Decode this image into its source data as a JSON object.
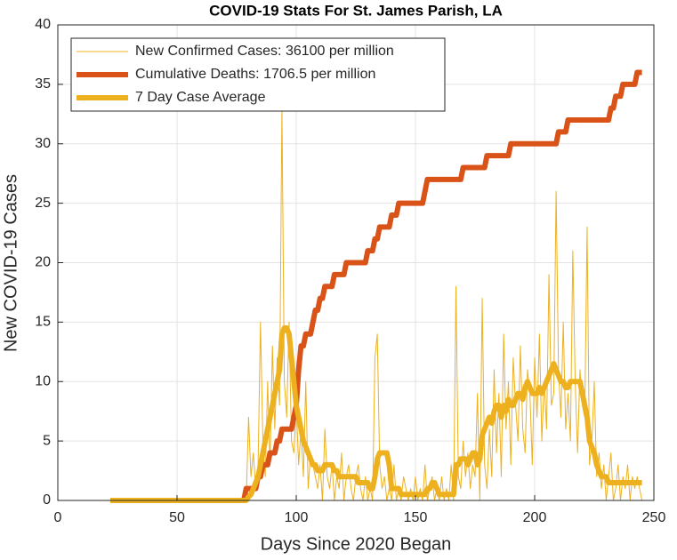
{
  "chart_data": {
    "type": "line",
    "title": "COVID-19 Stats For St. James Parish, LA",
    "xlabel": "Days Since 2020 Began",
    "ylabel": "New COVID-19 Cases",
    "xlim": [
      0,
      250
    ],
    "xticks": [
      0,
      50,
      100,
      150,
      200,
      250
    ],
    "ylim": [
      0,
      40
    ],
    "yticks": [
      0,
      5,
      10,
      15,
      20,
      25,
      30,
      35,
      40
    ],
    "grid": true,
    "legend": "northwest",
    "x": [
      22,
      23,
      24,
      25,
      26,
      27,
      28,
      29,
      30,
      31,
      32,
      33,
      34,
      35,
      36,
      37,
      38,
      39,
      40,
      41,
      42,
      43,
      44,
      45,
      46,
      47,
      48,
      49,
      50,
      51,
      52,
      53,
      54,
      55,
      56,
      57,
      58,
      59,
      60,
      61,
      62,
      63,
      64,
      65,
      66,
      67,
      68,
      69,
      70,
      71,
      72,
      73,
      74,
      75,
      76,
      77,
      78,
      79,
      80,
      81,
      82,
      83,
      84,
      85,
      86,
      87,
      88,
      89,
      90,
      91,
      92,
      93,
      94,
      95,
      96,
      97,
      98,
      99,
      100,
      101,
      102,
      103,
      104,
      105,
      106,
      107,
      108,
      109,
      110,
      111,
      112,
      113,
      114,
      115,
      116,
      117,
      118,
      119,
      120,
      121,
      122,
      123,
      124,
      125,
      126,
      127,
      128,
      129,
      130,
      131,
      132,
      133,
      134,
      135,
      136,
      137,
      138,
      139,
      140,
      141,
      142,
      143,
      144,
      145,
      146,
      147,
      148,
      149,
      150,
      151,
      152,
      153,
      154,
      155,
      156,
      157,
      158,
      159,
      160,
      161,
      162,
      163,
      164,
      165,
      166,
      167,
      168,
      169,
      170,
      171,
      172,
      173,
      174,
      175,
      176,
      177,
      178,
      179,
      180,
      181,
      182,
      183,
      184,
      185,
      186,
      187,
      188,
      189,
      190,
      191,
      192,
      193,
      194,
      195,
      196,
      197,
      198,
      199,
      200,
      201,
      202,
      203,
      204,
      205,
      206,
      207,
      208,
      209,
      210,
      211,
      212,
      213,
      214,
      215,
      216,
      217,
      218,
      219,
      220,
      221,
      222,
      223,
      224,
      225,
      226,
      227,
      228,
      229,
      230,
      231,
      232,
      233,
      234,
      235,
      236,
      237,
      238,
      239,
      240,
      241,
      242,
      243,
      244,
      245
    ],
    "series": [
      {
        "name": "New Confirmed Cases: 36100 per million",
        "color": "#EDB120",
        "values": [
          0,
          0,
          0,
          0,
          0,
          0,
          0,
          0,
          0,
          0,
          0,
          0,
          0,
          0,
          0,
          0,
          0,
          0,
          0,
          0,
          0,
          0,
          0,
          0,
          0,
          0,
          0,
          0,
          0,
          0,
          0,
          0,
          0,
          0,
          0,
          0,
          0,
          0,
          0,
          0,
          0,
          0,
          0,
          0,
          0,
          0,
          0,
          0,
          0,
          0,
          0,
          0,
          0,
          0,
          0,
          0,
          0,
          0,
          7,
          2,
          4,
          1,
          3,
          15,
          5,
          2,
          10,
          3,
          13,
          6,
          12,
          8,
          33,
          10,
          7,
          15,
          5,
          4,
          8,
          3,
          6,
          2,
          10,
          1,
          4,
          3,
          2,
          1,
          3,
          0,
          6,
          2,
          1,
          3,
          0,
          2,
          1,
          4,
          0,
          2,
          3,
          1,
          0,
          2,
          3,
          1,
          0,
          2,
          0,
          1,
          0,
          12,
          14,
          3,
          1,
          2,
          0,
          1,
          0,
          3,
          0,
          1,
          0,
          2,
          1,
          0,
          1,
          0,
          2,
          0,
          1,
          0,
          3,
          0,
          1,
          2,
          0,
          1,
          0,
          2,
          0,
          1,
          0,
          3,
          0,
          18,
          2,
          1,
          5,
          2,
          4,
          1,
          3,
          2,
          9,
          0,
          17,
          3,
          1,
          6,
          2,
          11,
          4,
          9,
          2,
          14,
          6,
          10,
          3,
          12,
          8,
          5,
          13,
          6,
          4,
          11,
          9,
          3,
          12,
          7,
          14,
          5,
          10,
          6,
          19,
          8,
          9,
          26,
          11,
          7,
          15,
          6,
          9,
          5,
          21,
          10,
          4,
          11,
          8,
          7,
          23,
          3,
          5,
          10,
          2,
          4,
          1,
          3,
          0,
          2,
          4,
          0,
          1,
          3,
          0,
          2,
          1,
          3,
          0,
          2,
          1,
          2,
          1,
          0
        ]
      },
      {
        "name": "Cumulative Deaths: 1706.5 per million",
        "color": "#D95319",
        "values": [
          0,
          0,
          0,
          0,
          0,
          0,
          0,
          0,
          0,
          0,
          0,
          0,
          0,
          0,
          0,
          0,
          0,
          0,
          0,
          0,
          0,
          0,
          0,
          0,
          0,
          0,
          0,
          0,
          0,
          0,
          0,
          0,
          0,
          0,
          0,
          0,
          0,
          0,
          0,
          0,
          0,
          0,
          0,
          0,
          0,
          0,
          0,
          0,
          0,
          0,
          0,
          0,
          0,
          0,
          0,
          0,
          0,
          1,
          1,
          1,
          1,
          1,
          2,
          2,
          3,
          3,
          3,
          4,
          4,
          4,
          5,
          5,
          6,
          6,
          6,
          6,
          6,
          7,
          8,
          11,
          13,
          13,
          14,
          14,
          14,
          15,
          16,
          16,
          17,
          17,
          18,
          18,
          18,
          18,
          19,
          19,
          19,
          19,
          19,
          20,
          20,
          20,
          20,
          20,
          20,
          20,
          20,
          20,
          21,
          21,
          21,
          22,
          22,
          23,
          23,
          23,
          23,
          23,
          24,
          24,
          24,
          25,
          25,
          25,
          25,
          25,
          25,
          25,
          25,
          25,
          25,
          25,
          26,
          27,
          27,
          27,
          27,
          27,
          27,
          27,
          27,
          27,
          27,
          27,
          27,
          27,
          27,
          27,
          28,
          28,
          28,
          28,
          28,
          28,
          28,
          28,
          28,
          28,
          29,
          29,
          29,
          29,
          29,
          29,
          29,
          29,
          29,
          29,
          30,
          30,
          30,
          30,
          30,
          30,
          30,
          30,
          30,
          30,
          30,
          30,
          30,
          30,
          30,
          30,
          30,
          30,
          30,
          30,
          31,
          31,
          31,
          31,
          32,
          32,
          32,
          32,
          32,
          32,
          32,
          32,
          32,
          32,
          32,
          32,
          32,
          32,
          32,
          32,
          32,
          32,
          33,
          33,
          34,
          34,
          34,
          35,
          35,
          35,
          35,
          35,
          35,
          36,
          36,
          36
        ]
      },
      {
        "name": "7 Day Case Average",
        "color": "#EDB120",
        "values": [
          0,
          0,
          0,
          0,
          0,
          0,
          0,
          0,
          0,
          0,
          0,
          0,
          0,
          0,
          0,
          0,
          0,
          0,
          0,
          0,
          0,
          0,
          0,
          0,
          0,
          0,
          0,
          0,
          0,
          0,
          0,
          0,
          0,
          0,
          0,
          0,
          0,
          0,
          0,
          0,
          0,
          0,
          0,
          0,
          0,
          0,
          0,
          0,
          0,
          0,
          0,
          0,
          0,
          0,
          0,
          0,
          0,
          0,
          0.3,
          0.5,
          1,
          1.5,
          2,
          3,
          4,
          5,
          6,
          7,
          8,
          9,
          10,
          11,
          14,
          14.5,
          14.5,
          14,
          12,
          10,
          8,
          7,
          6,
          5,
          4.5,
          4,
          3.5,
          3,
          3,
          2.5,
          2.5,
          2.5,
          3,
          3,
          3,
          3,
          2.5,
          2.5,
          2,
          2,
          2,
          2,
          2,
          2,
          2,
          2,
          1.5,
          1.5,
          1.5,
          1.5,
          1.5,
          1,
          1,
          2,
          3.5,
          4,
          4,
          4,
          4,
          3,
          1,
          1,
          1,
          1,
          0.5,
          0.5,
          0.5,
          0.5,
          0.5,
          0.5,
          0.5,
          0.5,
          0.5,
          0.5,
          0.5,
          1,
          1,
          1.5,
          1.5,
          1,
          0.5,
          0.5,
          0.5,
          0.5,
          0.5,
          0.5,
          0.5,
          3,
          3,
          3.5,
          3.5,
          3.5,
          3,
          3.5,
          4,
          4,
          3,
          3.5,
          5.5,
          6,
          6.5,
          7,
          6.5,
          7.5,
          8,
          8,
          7,
          8,
          7.5,
          8.5,
          8,
          8,
          8.5,
          9,
          9,
          8.5,
          9.5,
          10,
          9.5,
          9,
          9,
          9,
          9.5,
          9,
          9.5,
          10,
          10.5,
          11,
          11.5,
          11,
          10.5,
          10,
          10,
          9.5,
          9.5,
          10,
          10,
          10,
          10,
          10,
          9,
          8,
          7,
          5,
          4.5,
          4,
          3,
          2.5,
          2,
          2,
          2,
          1.5,
          1.5,
          1.5,
          1.5,
          1.5,
          1.5,
          1.5,
          1.5,
          1.5,
          1.5,
          1.5,
          1.5,
          1.5,
          1.5,
          1.5
        ]
      }
    ]
  }
}
